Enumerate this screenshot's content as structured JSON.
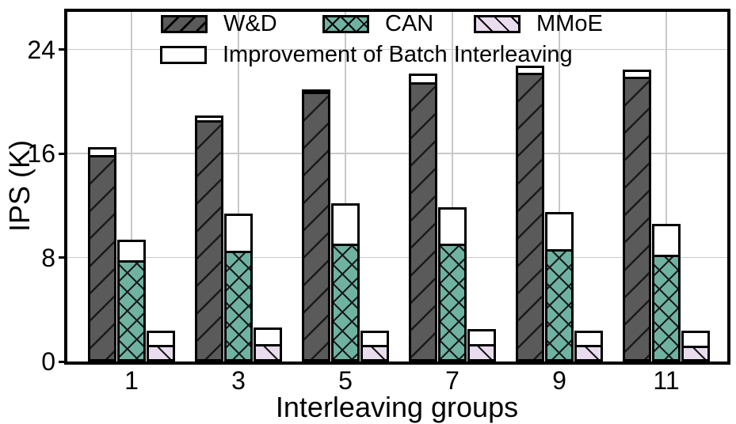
{
  "chart_data": {
    "type": "bar",
    "title": "",
    "xlabel": "Interleaving groups",
    "ylabel": "IPS (K)",
    "categories": [
      "1",
      "3",
      "5",
      "7",
      "9",
      "11"
    ],
    "yticks": [
      0,
      8,
      16,
      24
    ],
    "ylim": [
      0,
      26.9
    ],
    "grid": true,
    "legend_position": "upper center inside plot, two rows",
    "improvement_label": "Improvement of Batch Interleaving",
    "improvement_color": "#ffffff",
    "gridline_color": "#c9c9c9",
    "series": [
      {
        "name": "W&D",
        "color": "#5a5a5a",
        "hatch": "/",
        "values": [
          15.9,
          18.55,
          20.75,
          21.5,
          22.2,
          21.9
        ],
        "with_improvement": [
          16.5,
          18.9,
          20.85,
          22.15,
          22.75,
          22.45
        ]
      },
      {
        "name": "CAN",
        "color": "#6fb2a2",
        "hatch": "xx",
        "values": [
          7.8,
          8.5,
          9.05,
          9.05,
          8.65,
          8.2
        ],
        "with_improvement": [
          9.35,
          11.4,
          12.15,
          11.85,
          11.5,
          10.6
        ]
      },
      {
        "name": "MMoE",
        "color": "#e9dcee",
        "hatch": "\\",
        "values": [
          1.25,
          1.35,
          1.3,
          1.35,
          1.25,
          1.2
        ],
        "with_improvement": [
          2.35,
          2.6,
          2.4,
          2.5,
          2.4,
          2.4
        ]
      }
    ]
  }
}
